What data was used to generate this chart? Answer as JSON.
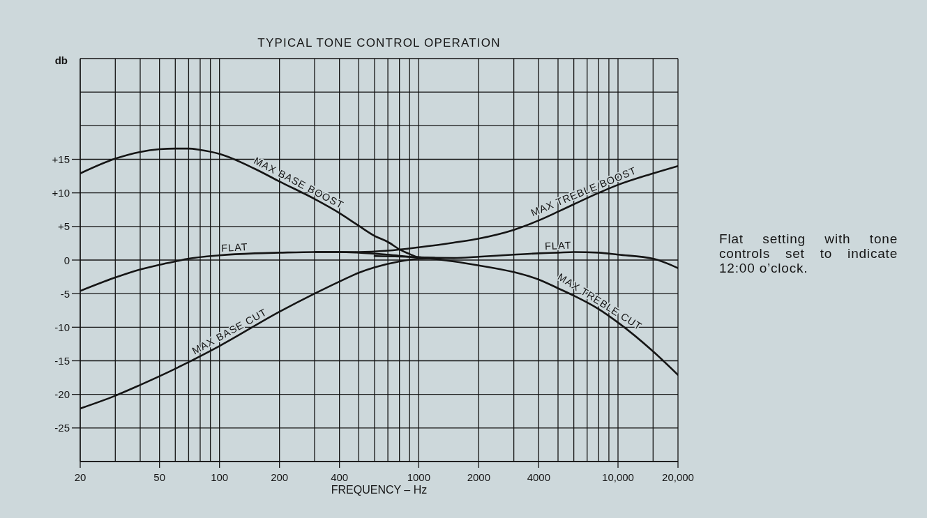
{
  "chart_data": {
    "type": "line",
    "title": "TYPICAL TONE CONTROL OPERATION",
    "xlabel": "FREQUENCY – Hz",
    "ylabel": "db",
    "annotations": [
      "Flat setting with tone controls set to indicate 12:00 o’clock."
    ],
    "log": "x",
    "grid": true,
    "xlim": [
      20,
      20000
    ],
    "xticks": [
      20,
      {
        "value": 30,
        "label": null
      },
      {
        "value": 40,
        "label": null
      },
      50,
      {
        "value": 60,
        "label": null
      },
      {
        "value": 70,
        "label": null
      },
      {
        "value": 80,
        "label": null
      },
      {
        "value": 90,
        "label": null
      },
      100,
      200,
      {
        "value": 300,
        "label": null
      },
      400,
      {
        "value": 500,
        "label": null
      },
      {
        "value": 600,
        "label": null
      },
      {
        "value": 700,
        "label": null
      },
      {
        "value": 800,
        "label": null
      },
      {
        "value": 900,
        "label": null
      },
      1000,
      2000,
      {
        "value": 3000,
        "label": null
      },
      4000,
      {
        "value": 5000,
        "label": null
      },
      {
        "value": 6000,
        "label": null
      },
      {
        "value": 7000,
        "label": null
      },
      {
        "value": 8000,
        "label": null
      },
      {
        "value": 9000,
        "label": null
      },
      {
        "value": 10000,
        "label": "10,000"
      },
      {
        "value": 15000,
        "label": null
      },
      {
        "value": 20000,
        "label": "20,000"
      }
    ],
    "ylim": [
      -30,
      30
    ],
    "yticks": [
      {
        "value": -30,
        "label": null
      },
      -25,
      -20,
      -15,
      -10,
      -5,
      0,
      {
        "value": 5,
        "label": "+5"
      },
      {
        "value": 10,
        "label": "+10"
      },
      {
        "value": 15,
        "label": "+15"
      },
      {
        "value": 20,
        "label": null
      },
      {
        "value": 25,
        "label": null
      },
      {
        "value": 30,
        "label": null
      }
    ],
    "series": [
      {
        "name": "MAX BASE BOOST",
        "color": "#151515",
        "x": [
          20,
          30,
          40,
          50,
          60,
          70,
          80,
          100,
          150,
          200,
          300,
          400,
          500,
          600,
          700,
          800,
          900,
          1000,
          1200
        ],
        "values": [
          12.9,
          15.1,
          16.1,
          16.5,
          16.6,
          16.6,
          16.4,
          15.8,
          13.6,
          11.7,
          9.1,
          7.0,
          5.1,
          3.6,
          2.7,
          1.6,
          0.9,
          0.4,
          0.3
        ]
      },
      {
        "name": "MAX TREBLE BOOST",
        "color": "#151515",
        "x": [
          300,
          500,
          700,
          1000,
          1500,
          2000,
          3000,
          4000,
          5000,
          6000,
          8000,
          10000,
          15000,
          20000
        ],
        "values": [
          1.2,
          1.2,
          1.4,
          1.9,
          2.6,
          3.2,
          4.5,
          5.9,
          7.2,
          8.3,
          10.0,
          11.2,
          12.9,
          14.0
        ]
      },
      {
        "name": "FLAT",
        "color": "#151515",
        "x": [
          20,
          30,
          40,
          50,
          60,
          70,
          100,
          150,
          200,
          300,
          400,
          500,
          700,
          1000,
          1500,
          2000,
          3000,
          4000,
          5000,
          6000,
          8000,
          10000,
          15000,
          20000
        ],
        "values": [
          -4.6,
          -2.6,
          -1.4,
          -0.7,
          -0.2,
          0.2,
          0.7,
          1.0,
          1.1,
          1.2,
          1.2,
          1.1,
          0.8,
          0.4,
          0.3,
          0.5,
          0.8,
          1.0,
          1.1,
          1.2,
          1.1,
          0.8,
          0.2,
          -1.2
        ]
      },
      {
        "name": "MAX BASE CUT",
        "color": "#151515",
        "x": [
          20,
          30,
          40,
          50,
          70,
          100,
          200,
          300,
          400,
          500,
          600,
          800,
          1000,
          1200
        ],
        "values": [
          -22.1,
          -20.2,
          -18.6,
          -17.3,
          -15.2,
          -12.8,
          -7.7,
          -5.0,
          -3.2,
          -1.9,
          -1.1,
          -0.2,
          0.2,
          0.3
        ]
      },
      {
        "name": "MAX TREBLE CUT",
        "color": "#151515",
        "x": [
          600,
          1000,
          1500,
          2000,
          3000,
          4000,
          5000,
          6000,
          8000,
          10000,
          15000,
          20000
        ],
        "values": [
          0.6,
          0.4,
          -0.2,
          -0.8,
          -1.8,
          -2.9,
          -4.2,
          -5.3,
          -7.3,
          -9.3,
          -13.6,
          -17.1
        ]
      }
    ]
  }
}
